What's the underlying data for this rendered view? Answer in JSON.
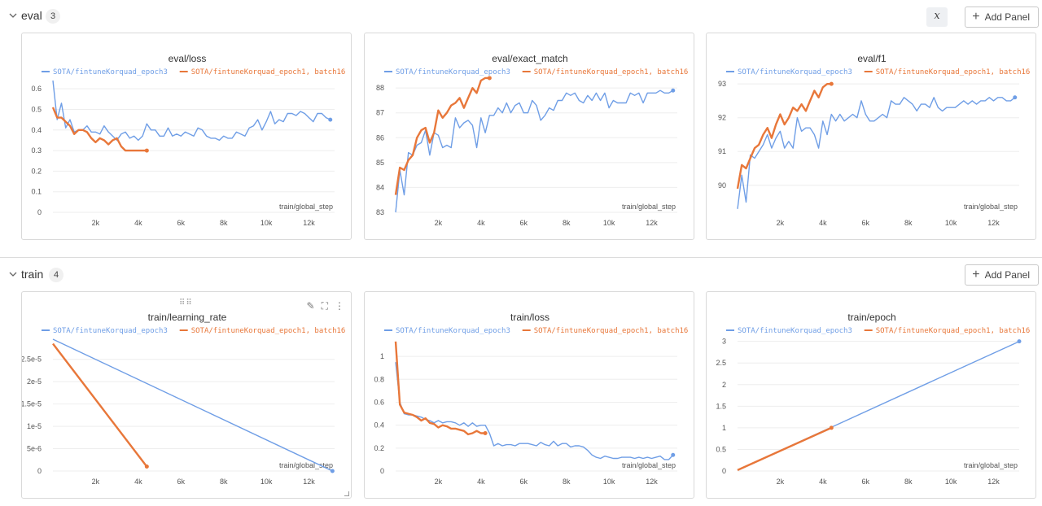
{
  "sections": [
    {
      "title": "eval",
      "count": "3",
      "add_panel": "Add Panel",
      "expr_label": "x"
    },
    {
      "title": "train",
      "count": "4",
      "add_panel": "Add Panel"
    }
  ],
  "colors": {
    "blue": "#6f9ee6",
    "orange": "#e8773a"
  },
  "chart_data": [
    {
      "type": "line",
      "title": "eval/loss",
      "xlabel": "train/global_step",
      "ylabel": "",
      "xlim": [
        0,
        13200
      ],
      "ylim": [
        0,
        0.64
      ],
      "xticks": [
        2000,
        4000,
        6000,
        8000,
        10000,
        12000
      ],
      "xtick_labels": [
        "2k",
        "4k",
        "6k",
        "8k",
        "10k",
        "12k"
      ],
      "yticks": [
        0,
        0.1,
        0.2,
        0.3,
        0.4,
        0.5,
        0.6
      ],
      "ytick_labels": [
        "0",
        "0.1",
        "0.2",
        "0.3",
        "0.4",
        "0.5",
        "0.6"
      ],
      "series": [
        {
          "name": "SOTA/fintuneKorquad_epoch3",
          "color": "#6f9ee6",
          "x": [
            0,
            200,
            400,
            600,
            800,
            1000,
            1200,
            1400,
            1600,
            1800,
            2000,
            2200,
            2400,
            2600,
            2800,
            3000,
            3200,
            3400,
            3600,
            3800,
            4000,
            4200,
            4400,
            4600,
            4800,
            5000,
            5200,
            5400,
            5600,
            5800,
            6000,
            6200,
            6400,
            6600,
            6800,
            7000,
            7200,
            7400,
            7600,
            7800,
            8000,
            8200,
            8400,
            8600,
            8800,
            9000,
            9200,
            9400,
            9600,
            9800,
            10000,
            10200,
            10400,
            10600,
            10800,
            11000,
            11200,
            11400,
            11600,
            11800,
            12000,
            12200,
            12400,
            12600,
            12800,
            13000
          ],
          "y": [
            0.64,
            0.45,
            0.53,
            0.41,
            0.45,
            0.39,
            0.4,
            0.4,
            0.42,
            0.39,
            0.39,
            0.38,
            0.42,
            0.39,
            0.37,
            0.35,
            0.38,
            0.39,
            0.36,
            0.37,
            0.35,
            0.37,
            0.43,
            0.4,
            0.4,
            0.37,
            0.37,
            0.41,
            0.37,
            0.38,
            0.37,
            0.39,
            0.38,
            0.37,
            0.41,
            0.4,
            0.37,
            0.36,
            0.36,
            0.35,
            0.37,
            0.36,
            0.36,
            0.39,
            0.38,
            0.37,
            0.41,
            0.42,
            0.45,
            0.4,
            0.44,
            0.49,
            0.43,
            0.45,
            0.44,
            0.48,
            0.48,
            0.47,
            0.49,
            0.48,
            0.46,
            0.44,
            0.48,
            0.48,
            0.46,
            0.45
          ]
        },
        {
          "name": "SOTA/fintuneKorquad_epoch1, batch16",
          "color": "#e8773a",
          "x": [
            0,
            200,
            400,
            600,
            800,
            1000,
            1200,
            1400,
            1600,
            1800,
            2000,
            2200,
            2400,
            2600,
            2800,
            3000,
            3200,
            3400,
            3600,
            3800,
            4000,
            4200,
            4400
          ],
          "y": [
            0.51,
            0.46,
            0.46,
            0.44,
            0.42,
            0.38,
            0.4,
            0.4,
            0.39,
            0.36,
            0.34,
            0.36,
            0.35,
            0.33,
            0.35,
            0.36,
            0.32,
            0.3,
            0.3,
            0.3,
            0.3,
            0.3,
            0.3
          ]
        }
      ]
    },
    {
      "type": "line",
      "title": "eval/exact_match",
      "xlabel": "train/global_step",
      "ylabel": "",
      "xlim": [
        0,
        13200
      ],
      "ylim": [
        83,
        88.3
      ],
      "xticks": [
        2000,
        4000,
        6000,
        8000,
        10000,
        12000
      ],
      "xtick_labels": [
        "2k",
        "4k",
        "6k",
        "8k",
        "10k",
        "12k"
      ],
      "yticks": [
        83,
        84,
        85,
        86,
        87,
        88
      ],
      "ytick_labels": [
        "83",
        "84",
        "85",
        "86",
        "87",
        "88"
      ],
      "series": [
        {
          "name": "SOTA/fintuneKorquad_epoch3",
          "color": "#6f9ee6",
          "x": [
            0,
            200,
            400,
            600,
            800,
            1000,
            1200,
            1400,
            1600,
            1800,
            2000,
            2200,
            2400,
            2600,
            2800,
            3000,
            3200,
            3400,
            3600,
            3800,
            4000,
            4200,
            4400,
            4600,
            4800,
            5000,
            5200,
            5400,
            5600,
            5800,
            6000,
            6200,
            6400,
            6600,
            6800,
            7000,
            7200,
            7400,
            7600,
            7800,
            8000,
            8200,
            8400,
            8600,
            8800,
            9000,
            9200,
            9400,
            9600,
            9800,
            10000,
            10200,
            10400,
            10600,
            10800,
            11000,
            11200,
            11400,
            11600,
            11800,
            12000,
            12200,
            12400,
            12600,
            12800,
            13000
          ],
          "y": [
            83.0,
            84.7,
            83.7,
            85.4,
            85.3,
            85.7,
            85.8,
            86.3,
            85.3,
            86.2,
            86.1,
            85.6,
            85.7,
            85.6,
            86.8,
            86.4,
            86.6,
            86.7,
            86.5,
            85.6,
            86.8,
            86.2,
            86.9,
            86.9,
            87.2,
            87.0,
            87.4,
            87.0,
            87.3,
            87.4,
            87.0,
            87.0,
            87.5,
            87.3,
            86.7,
            86.9,
            87.2,
            87.1,
            87.5,
            87.5,
            87.8,
            87.7,
            87.8,
            87.5,
            87.4,
            87.7,
            87.5,
            87.8,
            87.5,
            87.8,
            87.2,
            87.5,
            87.4,
            87.4,
            87.4,
            87.8,
            87.7,
            87.8,
            87.4,
            87.8,
            87.8,
            87.8,
            87.9,
            87.8,
            87.8,
            87.9
          ]
        },
        {
          "name": "SOTA/fintuneKorquad_epoch1, batch16",
          "color": "#e8773a",
          "x": [
            0,
            200,
            400,
            600,
            800,
            1000,
            1200,
            1400,
            1600,
            1800,
            2000,
            2200,
            2400,
            2600,
            2800,
            3000,
            3200,
            3400,
            3600,
            3800,
            4000,
            4200,
            4400
          ],
          "y": [
            83.7,
            84.8,
            84.7,
            85.1,
            85.3,
            86.0,
            86.3,
            86.4,
            85.8,
            86.2,
            87.1,
            86.8,
            87.0,
            87.3,
            87.4,
            87.6,
            87.2,
            87.6,
            88.0,
            87.8,
            88.3,
            88.4,
            88.4
          ]
        }
      ]
    },
    {
      "type": "line",
      "title": "eval/f1",
      "xlabel": "train/global_step",
      "ylabel": "",
      "xlim": [
        0,
        13200
      ],
      "ylim": [
        89.2,
        93.1
      ],
      "xticks": [
        2000,
        4000,
        6000,
        8000,
        10000,
        12000
      ],
      "xtick_labels": [
        "2k",
        "4k",
        "6k",
        "8k",
        "10k",
        "12k"
      ],
      "yticks": [
        90,
        91,
        92,
        93
      ],
      "ytick_labels": [
        "90",
        "91",
        "92",
        "93"
      ],
      "series": [
        {
          "name": "SOTA/fintuneKorquad_epoch3",
          "color": "#6f9ee6",
          "x": [
            0,
            200,
            400,
            600,
            800,
            1000,
            1200,
            1400,
            1600,
            1800,
            2000,
            2200,
            2400,
            2600,
            2800,
            3000,
            3200,
            3400,
            3600,
            3800,
            4000,
            4200,
            4400,
            4600,
            4800,
            5000,
            5200,
            5400,
            5600,
            5800,
            6000,
            6200,
            6400,
            6600,
            6800,
            7000,
            7200,
            7400,
            7600,
            7800,
            8000,
            8200,
            8400,
            8600,
            8800,
            9000,
            9200,
            9400,
            9600,
            9800,
            10000,
            10200,
            10400,
            10600,
            10800,
            11000,
            11200,
            11400,
            11600,
            11800,
            12000,
            12200,
            12400,
            12600,
            12800,
            13000
          ],
          "y": [
            89.3,
            90.3,
            89.5,
            90.9,
            90.8,
            91.0,
            91.2,
            91.5,
            91.1,
            91.4,
            91.6,
            91.1,
            91.3,
            91.1,
            92.0,
            91.6,
            91.7,
            91.7,
            91.5,
            91.1,
            91.9,
            91.5,
            92.1,
            91.9,
            92.1,
            91.9,
            92.0,
            92.1,
            92.0,
            92.5,
            92.1,
            91.9,
            91.9,
            92.0,
            92.1,
            92.0,
            92.5,
            92.4,
            92.4,
            92.6,
            92.5,
            92.4,
            92.2,
            92.4,
            92.4,
            92.3,
            92.6,
            92.3,
            92.2,
            92.3,
            92.3,
            92.3,
            92.4,
            92.5,
            92.4,
            92.5,
            92.4,
            92.5,
            92.5,
            92.6,
            92.5,
            92.6,
            92.6,
            92.5,
            92.5,
            92.6
          ]
        },
        {
          "name": "SOTA/fintuneKorquad_epoch1, batch16",
          "color": "#e8773a",
          "x": [
            0,
            200,
            400,
            600,
            800,
            1000,
            1200,
            1400,
            1600,
            1800,
            2000,
            2200,
            2400,
            2600,
            2800,
            3000,
            3200,
            3400,
            3600,
            3800,
            4000,
            4200,
            4400
          ],
          "y": [
            89.9,
            90.6,
            90.5,
            90.8,
            91.1,
            91.2,
            91.5,
            91.7,
            91.4,
            91.8,
            92.1,
            91.8,
            92.0,
            92.3,
            92.2,
            92.4,
            92.2,
            92.5,
            92.8,
            92.6,
            92.9,
            93.0,
            93.0
          ]
        }
      ]
    },
    {
      "type": "line",
      "title": "train/learning_rate",
      "xlabel": "train/global_step",
      "ylabel": "",
      "xlim": [
        0,
        13200
      ],
      "ylim": [
        0,
        2.95e-05
      ],
      "xticks": [
        2000,
        4000,
        6000,
        8000,
        10000,
        12000
      ],
      "xtick_labels": [
        "2k",
        "4k",
        "6k",
        "8k",
        "10k",
        "12k"
      ],
      "yticks": [
        0,
        5e-06,
        1e-05,
        1.5e-05,
        2e-05,
        2.5e-05
      ],
      "ytick_labels": [
        "0",
        "5e-6",
        "1e-5",
        "1.5e-5",
        "2e-5",
        "2.5e-5"
      ],
      "series": [
        {
          "name": "SOTA/fintuneKorquad_epoch3",
          "color": "#6f9ee6",
          "x": [
            0,
            13100
          ],
          "y": [
            2.95e-05,
            0
          ]
        },
        {
          "name": "SOTA/fintuneKorquad_epoch1, batch16",
          "color": "#e8773a",
          "x": [
            0,
            4400
          ],
          "y": [
            2.85e-05,
            1e-06
          ]
        }
      ]
    },
    {
      "type": "line",
      "title": "train/loss",
      "xlabel": "train/global_step",
      "ylabel": "",
      "xlim": [
        0,
        13200
      ],
      "ylim": [
        0,
        1.15
      ],
      "xticks": [
        2000,
        4000,
        6000,
        8000,
        10000,
        12000
      ],
      "xtick_labels": [
        "2k",
        "4k",
        "6k",
        "8k",
        "10k",
        "12k"
      ],
      "yticks": [
        0,
        0.2,
        0.4,
        0.6,
        0.8,
        1
      ],
      "ytick_labels": [
        "0",
        "0.2",
        "0.4",
        "0.6",
        "0.8",
        "1"
      ],
      "series": [
        {
          "name": "SOTA/fintuneKorquad_epoch3",
          "color": "#6f9ee6",
          "x": [
            0,
            200,
            400,
            600,
            800,
            1000,
            1200,
            1400,
            1600,
            1800,
            2000,
            2200,
            2400,
            2600,
            2800,
            3000,
            3200,
            3400,
            3600,
            3800,
            4000,
            4200,
            4400,
            4600,
            4800,
            5000,
            5200,
            5400,
            5600,
            5800,
            6000,
            6200,
            6400,
            6600,
            6800,
            7000,
            7200,
            7400,
            7600,
            7800,
            8000,
            8200,
            8400,
            8600,
            8800,
            9000,
            9200,
            9400,
            9600,
            9800,
            10000,
            10200,
            10400,
            10600,
            10800,
            11000,
            11200,
            11400,
            11600,
            11800,
            12000,
            12200,
            12400,
            12600,
            12800,
            13000
          ],
          "y": [
            0.95,
            0.6,
            0.5,
            0.49,
            0.49,
            0.48,
            0.47,
            0.45,
            0.44,
            0.42,
            0.44,
            0.42,
            0.43,
            0.43,
            0.42,
            0.4,
            0.42,
            0.39,
            0.42,
            0.39,
            0.4,
            0.4,
            0.33,
            0.22,
            0.24,
            0.22,
            0.23,
            0.23,
            0.22,
            0.24,
            0.24,
            0.24,
            0.23,
            0.22,
            0.25,
            0.23,
            0.22,
            0.26,
            0.22,
            0.24,
            0.24,
            0.21,
            0.22,
            0.22,
            0.21,
            0.18,
            0.14,
            0.12,
            0.11,
            0.13,
            0.12,
            0.11,
            0.11,
            0.12,
            0.12,
            0.12,
            0.11,
            0.12,
            0.11,
            0.12,
            0.11,
            0.12,
            0.13,
            0.1,
            0.1,
            0.14
          ]
        },
        {
          "name": "SOTA/fintuneKorquad_epoch1, batch16",
          "color": "#e8773a",
          "x": [
            0,
            200,
            400,
            600,
            800,
            1000,
            1200,
            1400,
            1600,
            1800,
            2000,
            2200,
            2400,
            2600,
            2800,
            3000,
            3200,
            3400,
            3600,
            3800,
            4000,
            4200
          ],
          "y": [
            1.13,
            0.58,
            0.51,
            0.5,
            0.49,
            0.47,
            0.44,
            0.46,
            0.42,
            0.41,
            0.38,
            0.4,
            0.39,
            0.37,
            0.37,
            0.36,
            0.35,
            0.32,
            0.33,
            0.35,
            0.33,
            0.33
          ]
        }
      ]
    },
    {
      "type": "line",
      "title": "train/epoch",
      "xlabel": "train/global_step",
      "ylabel": "",
      "xlim": [
        0,
        13200
      ],
      "ylim": [
        0,
        3.05
      ],
      "xticks": [
        2000,
        4000,
        6000,
        8000,
        10000,
        12000
      ],
      "xtick_labels": [
        "2k",
        "4k",
        "6k",
        "8k",
        "10k",
        "12k"
      ],
      "yticks": [
        0,
        0.5,
        1,
        1.5,
        2,
        2.5,
        3
      ],
      "ytick_labels": [
        "0",
        "0.5",
        "1",
        "1.5",
        "2",
        "2.5",
        "3"
      ],
      "series": [
        {
          "name": "SOTA/fintuneKorquad_epoch3",
          "color": "#6f9ee6",
          "x": [
            0,
            13200
          ],
          "y": [
            0.02,
            3.0
          ]
        },
        {
          "name": "SOTA/fintuneKorquad_epoch1, batch16",
          "color": "#e8773a",
          "x": [
            0,
            4400
          ],
          "y": [
            0.02,
            1.0
          ]
        }
      ]
    }
  ]
}
